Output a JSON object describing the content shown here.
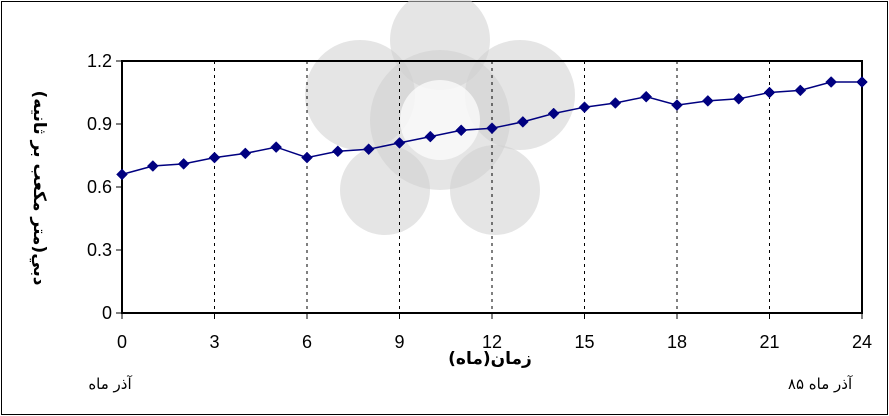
{
  "chart_data": {
    "type": "line",
    "xlabel": "زمان(ماه)",
    "ylabel": "دبي(متر مكعب بر ثانيه)",
    "xlim": [
      0,
      24
    ],
    "ylim": [
      0,
      1.2
    ],
    "x_ticks": [
      0,
      3,
      6,
      9,
      12,
      15,
      18,
      21,
      24
    ],
    "y_ticks": [
      0,
      0.3,
      0.6,
      0.9,
      1.2
    ],
    "x_tick_labels": [
      "0",
      "3",
      "6",
      "9",
      "12",
      "15",
      "18",
      "21",
      "24"
    ],
    "y_tick_labels": [
      "0",
      "0.3",
      "0.6",
      "0.9",
      "1.2"
    ],
    "grid": "vertical dashed",
    "series": [
      {
        "color": "#000080",
        "marker": "diamond",
        "x": [
          0,
          1,
          2,
          3,
          4,
          5,
          6,
          7,
          8,
          9,
          10,
          11,
          12,
          13,
          14,
          15,
          16,
          17,
          18,
          19,
          20,
          21,
          22,
          23,
          24
        ],
        "y": [
          0.66,
          0.7,
          0.71,
          0.74,
          0.76,
          0.79,
          0.74,
          0.77,
          0.78,
          0.81,
          0.84,
          0.87,
          0.88,
          0.91,
          0.95,
          0.98,
          1.0,
          1.03,
          0.99,
          1.01,
          1.02,
          1.05,
          1.06,
          1.1,
          1.1
        ]
      }
    ],
    "annotations": {
      "start": "آذر ماه",
      "end": "آذر ماه ۸۵"
    }
  }
}
